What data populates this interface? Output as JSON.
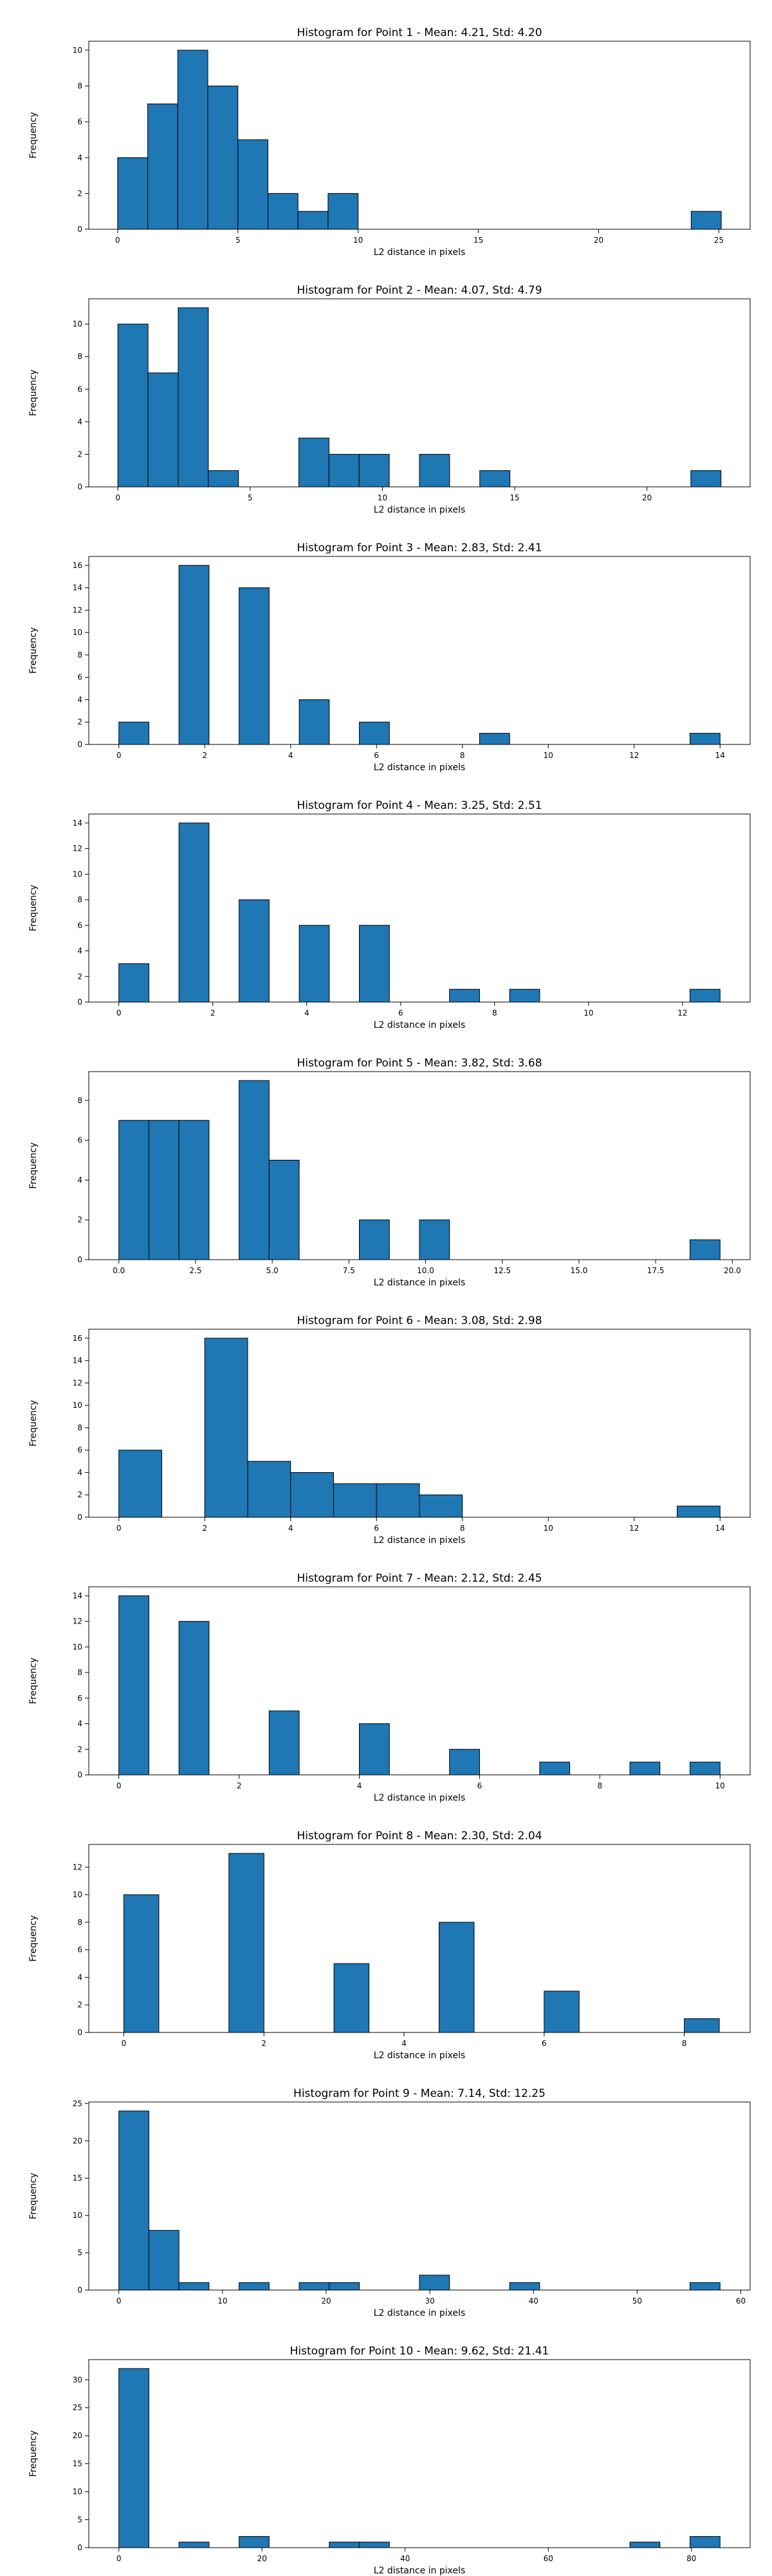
{
  "chart_data": [
    {
      "type": "bar",
      "title": "Histogram for Point 1 - Mean: 4.21, Std: 4.20",
      "xlabel": "L2 distance in pixels",
      "ylabel": "Frequency",
      "xlim": [
        -1.2,
        26.3
      ],
      "ylim": [
        0,
        10.5
      ],
      "xticks": [
        0,
        5,
        10,
        15,
        20,
        25
      ],
      "xtick_labels": [
        "0",
        "5",
        "10",
        "15",
        "20",
        "25"
      ],
      "yticks": [
        0,
        2,
        4,
        6,
        8,
        10
      ],
      "bins": [
        {
          "x0": 0.0,
          "x1": 1.25,
          "count": 4
        },
        {
          "x0": 1.25,
          "x1": 2.5,
          "count": 7
        },
        {
          "x0": 2.5,
          "x1": 3.75,
          "count": 10
        },
        {
          "x0": 3.75,
          "x1": 5.0,
          "count": 8
        },
        {
          "x0": 5.0,
          "x1": 6.25,
          "count": 5
        },
        {
          "x0": 6.25,
          "x1": 7.5,
          "count": 2
        },
        {
          "x0": 7.5,
          "x1": 8.75,
          "count": 1
        },
        {
          "x0": 8.75,
          "x1": 10.0,
          "count": 2
        },
        {
          "x0": 23.85,
          "x1": 25.1,
          "count": 1
        }
      ],
      "bar_color": "#1f77b4",
      "grid": false
    },
    {
      "type": "bar",
      "title": "Histogram for Point 2 - Mean: 4.07, Std: 4.79",
      "xlabel": "L2 distance in pixels",
      "ylabel": "Frequency",
      "xlim": [
        -1.1,
        23.9
      ],
      "ylim": [
        0,
        11.55
      ],
      "xticks": [
        0,
        5,
        10,
        15,
        20
      ],
      "xtick_labels": [
        "0",
        "5",
        "10",
        "15",
        "20"
      ],
      "yticks": [
        0,
        2,
        4,
        6,
        8,
        10
      ],
      "bins": [
        {
          "x0": 0.0,
          "x1": 1.14,
          "count": 10
        },
        {
          "x0": 1.14,
          "x1": 2.28,
          "count": 7
        },
        {
          "x0": 2.28,
          "x1": 3.42,
          "count": 11
        },
        {
          "x0": 3.42,
          "x1": 4.56,
          "count": 1
        },
        {
          "x0": 6.84,
          "x1": 7.98,
          "count": 3
        },
        {
          "x0": 7.98,
          "x1": 9.12,
          "count": 2
        },
        {
          "x0": 9.12,
          "x1": 10.26,
          "count": 2
        },
        {
          "x0": 11.4,
          "x1": 12.54,
          "count": 2
        },
        {
          "x0": 13.68,
          "x1": 14.82,
          "count": 1
        },
        {
          "x0": 21.66,
          "x1": 22.8,
          "count": 1
        }
      ],
      "bar_color": "#1f77b4",
      "grid": false
    },
    {
      "type": "bar",
      "title": "Histogram for Point 3 - Mean: 2.83, Std: 2.41",
      "xlabel": "L2 distance in pixels",
      "ylabel": "Frequency",
      "xlim": [
        -0.7,
        14.7
      ],
      "ylim": [
        0,
        16.8
      ],
      "xticks": [
        0,
        2,
        4,
        6,
        8,
        10,
        12,
        14
      ],
      "xtick_labels": [
        "0",
        "2",
        "4",
        "6",
        "8",
        "10",
        "12",
        "14"
      ],
      "yticks": [
        0,
        2,
        4,
        6,
        8,
        10,
        12,
        14,
        16
      ],
      "bins": [
        {
          "x0": 0.0,
          "x1": 0.7,
          "count": 2
        },
        {
          "x0": 1.4,
          "x1": 2.1,
          "count": 16
        },
        {
          "x0": 2.8,
          "x1": 3.5,
          "count": 14
        },
        {
          "x0": 4.2,
          "x1": 4.9,
          "count": 4
        },
        {
          "x0": 5.6,
          "x1": 6.3,
          "count": 2
        },
        {
          "x0": 8.4,
          "x1": 9.1,
          "count": 1
        },
        {
          "x0": 13.3,
          "x1": 14.0,
          "count": 1
        }
      ],
      "bar_color": "#1f77b4",
      "grid": false
    },
    {
      "type": "bar",
      "title": "Histogram for Point 4 - Mean: 3.25, Std: 2.51",
      "xlabel": "L2 distance in pixels",
      "ylabel": "Frequency",
      "xlim": [
        -0.64,
        13.44
      ],
      "ylim": [
        0,
        14.7
      ],
      "xticks": [
        0,
        2,
        4,
        6,
        8,
        10,
        12
      ],
      "xtick_labels": [
        "0",
        "2",
        "4",
        "6",
        "8",
        "10",
        "12"
      ],
      "yticks": [
        0,
        2,
        4,
        6,
        8,
        10,
        12,
        14
      ],
      "bins": [
        {
          "x0": 0.0,
          "x1": 0.64,
          "count": 3
        },
        {
          "x0": 1.28,
          "x1": 1.92,
          "count": 14
        },
        {
          "x0": 2.56,
          "x1": 3.2,
          "count": 8
        },
        {
          "x0": 3.84,
          "x1": 4.48,
          "count": 6
        },
        {
          "x0": 5.12,
          "x1": 5.76,
          "count": 6
        },
        {
          "x0": 7.04,
          "x1": 7.68,
          "count": 1
        },
        {
          "x0": 8.32,
          "x1": 8.96,
          "count": 1
        },
        {
          "x0": 12.16,
          "x1": 12.8,
          "count": 1
        }
      ],
      "bar_color": "#1f77b4",
      "grid": false
    },
    {
      "type": "bar",
      "title": "Histogram for Point 5 - Mean: 3.82, Std: 3.68",
      "xlabel": "L2 distance in pixels",
      "ylabel": "Frequency",
      "xlim": [
        -0.98,
        20.58
      ],
      "ylim": [
        0,
        9.45
      ],
      "xticks": [
        0.0,
        2.5,
        5.0,
        7.5,
        10.0,
        12.5,
        15.0,
        17.5,
        20.0
      ],
      "xtick_labels": [
        "0.0",
        "2.5",
        "5.0",
        "7.5",
        "10.0",
        "12.5",
        "15.0",
        "17.5",
        "20.0"
      ],
      "yticks": [
        0,
        2,
        4,
        6,
        8
      ],
      "bins": [
        {
          "x0": 0.0,
          "x1": 0.98,
          "count": 7
        },
        {
          "x0": 0.98,
          "x1": 1.96,
          "count": 7
        },
        {
          "x0": 1.96,
          "x1": 2.94,
          "count": 7
        },
        {
          "x0": 3.92,
          "x1": 4.9,
          "count": 9
        },
        {
          "x0": 4.9,
          "x1": 5.88,
          "count": 5
        },
        {
          "x0": 7.84,
          "x1": 8.82,
          "count": 2
        },
        {
          "x0": 9.8,
          "x1": 10.78,
          "count": 2
        },
        {
          "x0": 18.62,
          "x1": 19.6,
          "count": 1
        }
      ],
      "bar_color": "#1f77b4",
      "grid": false
    },
    {
      "type": "bar",
      "title": "Histogram for Point 6 - Mean: 3.08, Std: 2.98",
      "xlabel": "L2 distance in pixels",
      "ylabel": "Frequency",
      "xlim": [
        -0.7,
        14.7
      ],
      "ylim": [
        0,
        16.8
      ],
      "xticks": [
        0,
        2,
        4,
        6,
        8,
        10,
        12,
        14
      ],
      "xtick_labels": [
        "0",
        "2",
        "4",
        "6",
        "8",
        "10",
        "12",
        "14"
      ],
      "yticks": [
        0,
        2,
        4,
        6,
        8,
        10,
        12,
        14,
        16
      ],
      "bins": [
        {
          "x0": 0.0,
          "x1": 1.0,
          "count": 6
        },
        {
          "x0": 2.0,
          "x1": 3.0,
          "count": 16
        },
        {
          "x0": 3.0,
          "x1": 4.0,
          "count": 5
        },
        {
          "x0": 4.0,
          "x1": 5.0,
          "count": 4
        },
        {
          "x0": 5.0,
          "x1": 6.0,
          "count": 3
        },
        {
          "x0": 6.0,
          "x1": 7.0,
          "count": 3
        },
        {
          "x0": 7.0,
          "x1": 8.0,
          "count": 2
        },
        {
          "x0": 13.0,
          "x1": 14.0,
          "count": 1
        }
      ],
      "bar_color": "#1f77b4",
      "grid": false
    },
    {
      "type": "bar",
      "title": "Histogram for Point 7 - Mean: 2.12, Std: 2.45",
      "xlabel": "L2 distance in pixels",
      "ylabel": "Frequency",
      "xlim": [
        -0.5,
        10.5
      ],
      "ylim": [
        0,
        14.7
      ],
      "xticks": [
        0,
        2,
        4,
        6,
        8,
        10
      ],
      "xtick_labels": [
        "0",
        "2",
        "4",
        "6",
        "8",
        "10"
      ],
      "yticks": [
        0,
        2,
        4,
        6,
        8,
        10,
        12,
        14
      ],
      "bins": [
        {
          "x0": 0.0,
          "x1": 0.5,
          "count": 14
        },
        {
          "x0": 1.0,
          "x1": 1.5,
          "count": 12
        },
        {
          "x0": 2.5,
          "x1": 3.0,
          "count": 5
        },
        {
          "x0": 4.0,
          "x1": 4.5,
          "count": 4
        },
        {
          "x0": 5.5,
          "x1": 6.0,
          "count": 2
        },
        {
          "x0": 7.0,
          "x1": 7.5,
          "count": 1
        },
        {
          "x0": 8.5,
          "x1": 9.0,
          "count": 1
        },
        {
          "x0": 9.5,
          "x1": 10.0,
          "count": 1
        }
      ],
      "bar_color": "#1f77b4",
      "grid": false
    },
    {
      "type": "bar",
      "title": "Histogram for Point 8 - Mean: 2.30, Std: 2.04",
      "xlabel": "L2 distance in pixels",
      "ylabel": "Frequency",
      "xlim": [
        -0.5,
        8.94
      ],
      "ylim": [
        0,
        13.65
      ],
      "xticks": [
        0,
        2,
        4,
        6,
        8
      ],
      "xtick_labels": [
        "0",
        "2",
        "4",
        "6",
        "8"
      ],
      "yticks": [
        0,
        2,
        4,
        6,
        8,
        10,
        12
      ],
      "bins": [
        {
          "x0": 0.0,
          "x1": 0.5,
          "count": 10
        },
        {
          "x0": 1.5,
          "x1": 2.0,
          "count": 13
        },
        {
          "x0": 3.0,
          "x1": 3.5,
          "count": 5
        },
        {
          "x0": 4.5,
          "x1": 5.0,
          "count": 8
        },
        {
          "x0": 6.0,
          "x1": 6.5,
          "count": 3
        },
        {
          "x0": 8.0,
          "x1": 8.5,
          "count": 1
        }
      ],
      "bar_color": "#1f77b4",
      "grid": false
    },
    {
      "type": "bar",
      "title": "Histogram for Point 9 - Mean: 7.14, Std: 12.25",
      "xlabel": "L2 distance in pixels",
      "ylabel": "Frequency",
      "xlim": [
        -2.9,
        60.9
      ],
      "ylim": [
        0,
        25.2
      ],
      "xticks": [
        0,
        10,
        20,
        30,
        40,
        50,
        60
      ],
      "xtick_labels": [
        "0",
        "10",
        "20",
        "30",
        "40",
        "50",
        "60"
      ],
      "yticks": [
        0,
        5,
        10,
        15,
        20,
        25
      ],
      "bins": [
        {
          "x0": 0.0,
          "x1": 2.9,
          "count": 24
        },
        {
          "x0": 2.9,
          "x1": 5.8,
          "count": 8
        },
        {
          "x0": 5.8,
          "x1": 8.7,
          "count": 1
        },
        {
          "x0": 11.6,
          "x1": 14.5,
          "count": 1
        },
        {
          "x0": 17.4,
          "x1": 20.3,
          "count": 1
        },
        {
          "x0": 20.3,
          "x1": 23.2,
          "count": 1
        },
        {
          "x0": 29.0,
          "x1": 31.9,
          "count": 2
        },
        {
          "x0": 37.7,
          "x1": 40.6,
          "count": 1
        },
        {
          "x0": 55.1,
          "x1": 58.0,
          "count": 1
        }
      ],
      "bar_color": "#1f77b4",
      "grid": false
    },
    {
      "type": "bar",
      "title": "Histogram for Point 10 - Mean: 9.62, Std: 21.41",
      "xlabel": "L2 distance in pixels",
      "ylabel": "Frequency",
      "xlim": [
        -4.2,
        88.2
      ],
      "ylim": [
        0,
        33.6
      ],
      "xticks": [
        0,
        20,
        40,
        60,
        80
      ],
      "xtick_labels": [
        "0",
        "20",
        "40",
        "60",
        "80"
      ],
      "yticks": [
        0,
        5,
        10,
        15,
        20,
        25,
        30
      ],
      "bins": [
        {
          "x0": 0.0,
          "x1": 4.2,
          "count": 32
        },
        {
          "x0": 8.4,
          "x1": 12.6,
          "count": 1
        },
        {
          "x0": 16.8,
          "x1": 21.0,
          "count": 2
        },
        {
          "x0": 29.4,
          "x1": 33.6,
          "count": 1
        },
        {
          "x0": 33.6,
          "x1": 37.8,
          "count": 1
        },
        {
          "x0": 71.4,
          "x1": 75.6,
          "count": 1
        },
        {
          "x0": 79.8,
          "x1": 84.0,
          "count": 2
        }
      ],
      "bar_color": "#1f77b4",
      "grid": false
    }
  ]
}
